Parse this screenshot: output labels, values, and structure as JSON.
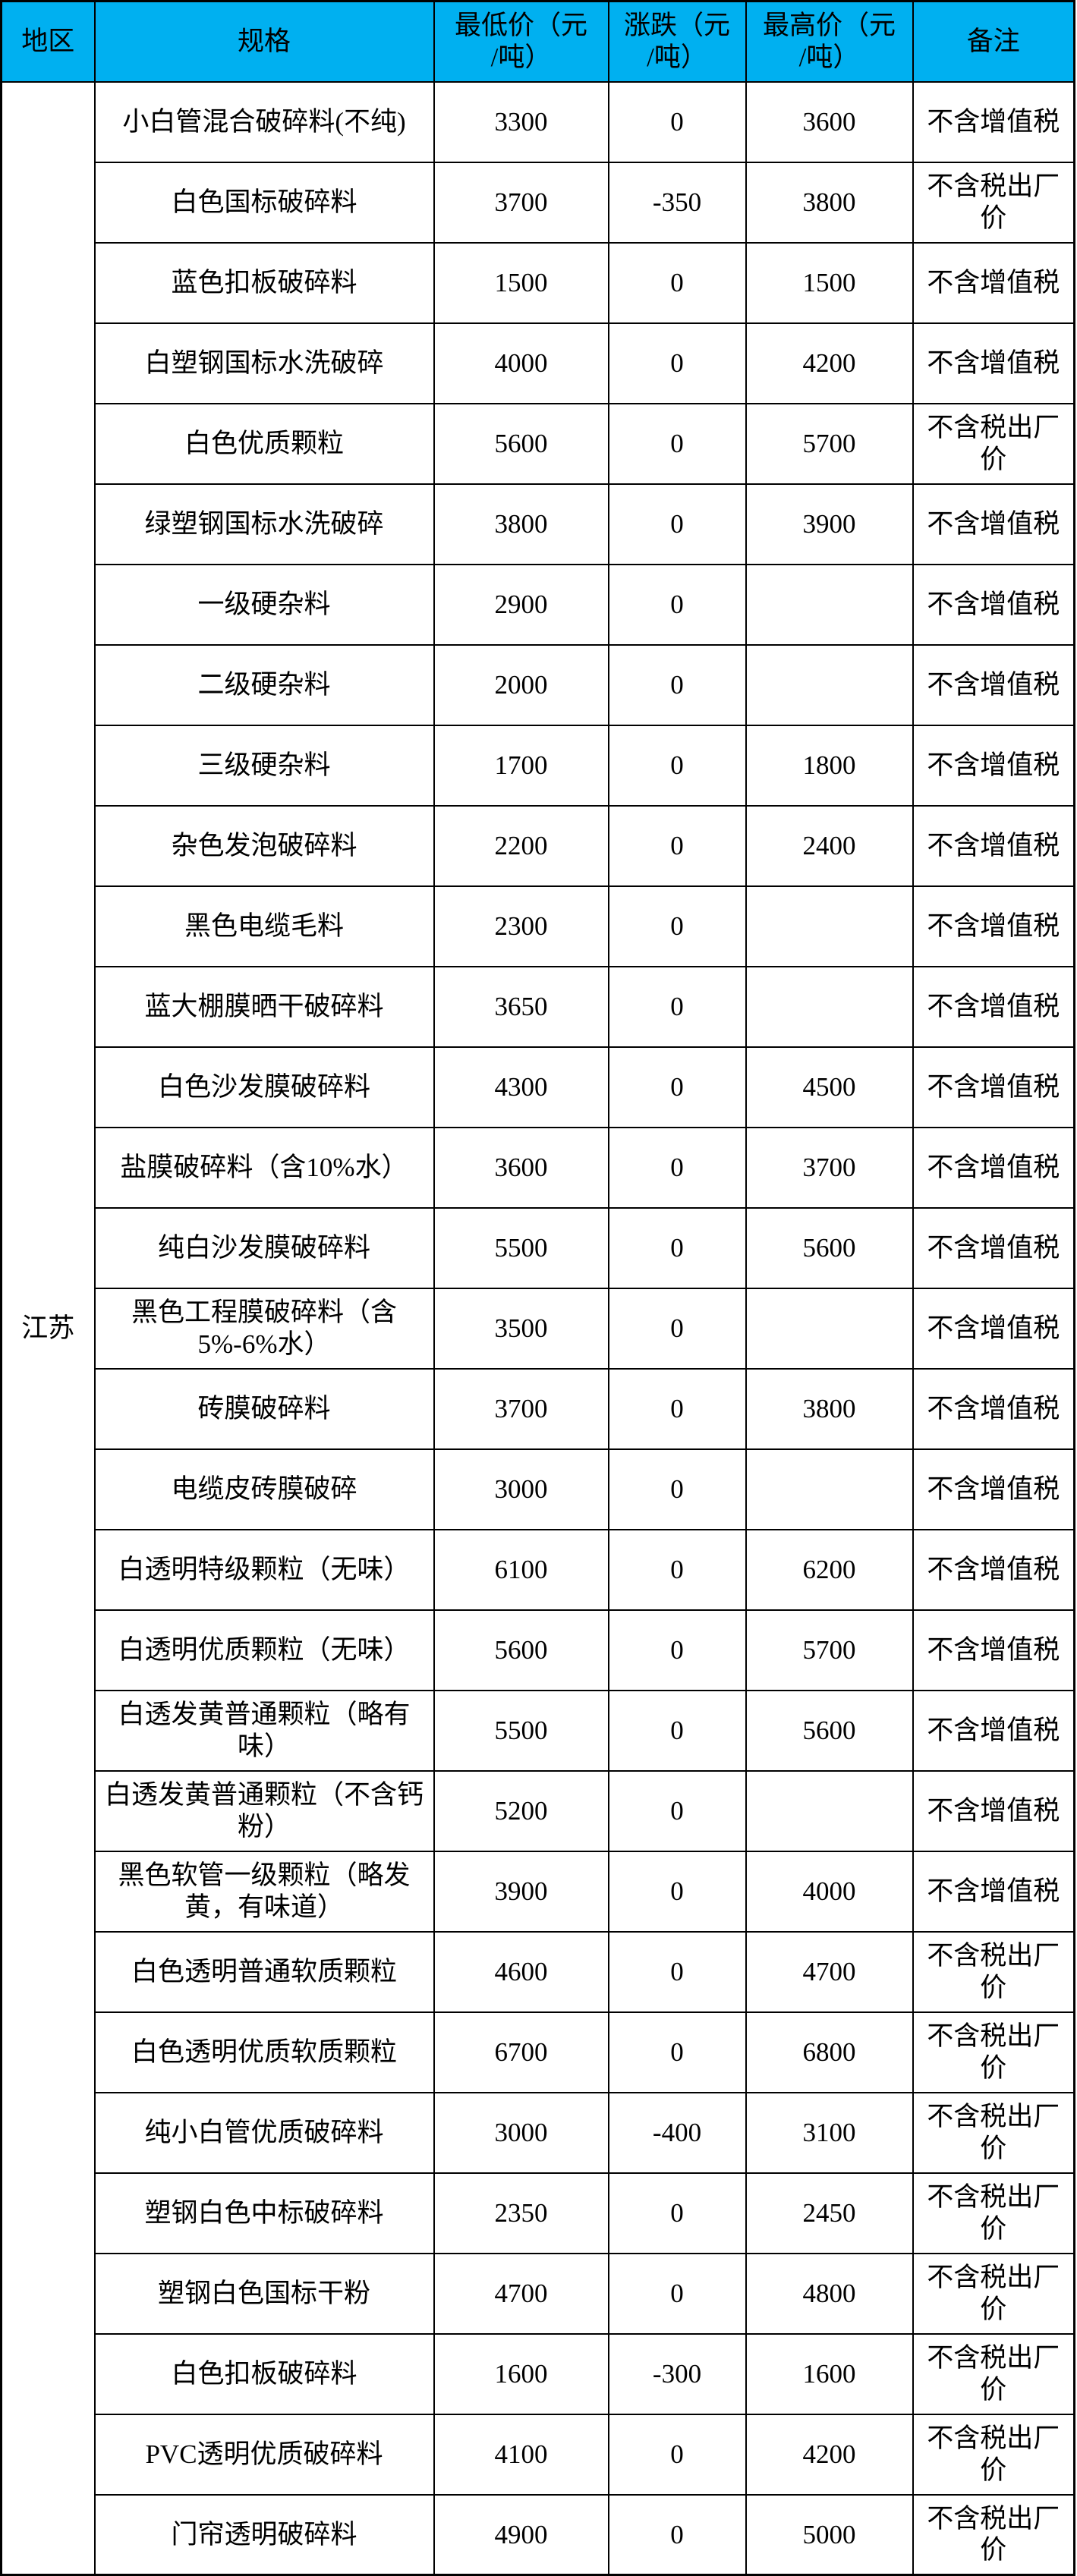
{
  "colors": {
    "header_bg": "#00B0F0",
    "border": "#000000",
    "text": "#000000",
    "page_bg": "#FFFFFF"
  },
  "chart_data": {
    "type": "table",
    "region": "江苏",
    "headers": {
      "region": "地区",
      "spec": "规格",
      "min": "最低价（元\n/吨）",
      "change": "涨跌（元\n/吨）",
      "max": "最高价（元\n/吨）",
      "note": "备注"
    },
    "rows": [
      {
        "spec": "小白管混合破碎料(不纯)",
        "min": "3300",
        "change": "0",
        "max": "3600",
        "note": "不含增值税"
      },
      {
        "spec": "白色国标破碎料",
        "min": "3700",
        "change": "-350",
        "max": "3800",
        "note": "不含税出厂价"
      },
      {
        "spec": "蓝色扣板破碎料",
        "min": "1500",
        "change": "0",
        "max": "1500",
        "note": "不含增值税"
      },
      {
        "spec": "白塑钢国标水洗破碎",
        "min": "4000",
        "change": "0",
        "max": "4200",
        "note": "不含增值税"
      },
      {
        "spec": "白色优质颗粒",
        "min": "5600",
        "change": "0",
        "max": "5700",
        "note": "不含税出厂价"
      },
      {
        "spec": "绿塑钢国标水洗破碎",
        "min": "3800",
        "change": "0",
        "max": "3900",
        "note": "不含增值税"
      },
      {
        "spec": "一级硬杂料",
        "min": "2900",
        "change": "0",
        "max": "",
        "note": "不含增值税"
      },
      {
        "spec": "二级硬杂料",
        "min": "2000",
        "change": "0",
        "max": "",
        "note": "不含增值税"
      },
      {
        "spec": "三级硬杂料",
        "min": "1700",
        "change": "0",
        "max": "1800",
        "note": "不含增值税"
      },
      {
        "spec": "杂色发泡破碎料",
        "min": "2200",
        "change": "0",
        "max": "2400",
        "note": "不含增值税"
      },
      {
        "spec": "黑色电缆毛料",
        "min": "2300",
        "change": "0",
        "max": "",
        "note": "不含增值税"
      },
      {
        "spec": "蓝大棚膜晒干破碎料",
        "min": "3650",
        "change": "0",
        "max": "",
        "note": "不含增值税"
      },
      {
        "spec": "白色沙发膜破碎料",
        "min": "4300",
        "change": "0",
        "max": "4500",
        "note": "不含增值税"
      },
      {
        "spec": "盐膜破碎料（含10%水）",
        "min": "3600",
        "change": "0",
        "max": "3700",
        "note": "不含增值税"
      },
      {
        "spec": "纯白沙发膜破碎料",
        "min": "5500",
        "change": "0",
        "max": "5600",
        "note": "不含增值税"
      },
      {
        "spec": "黑色工程膜破碎料（含5%-6%水）",
        "min": "3500",
        "change": "0",
        "max": "",
        "note": "不含增值税"
      },
      {
        "spec": "砖膜破碎料",
        "min": "3700",
        "change": "0",
        "max": "3800",
        "note": "不含增值税"
      },
      {
        "spec": "电缆皮砖膜破碎",
        "min": "3000",
        "change": "0",
        "max": "",
        "note": "不含增值税"
      },
      {
        "spec": "白透明特级颗粒（无味）",
        "min": "6100",
        "change": "0",
        "max": "6200",
        "note": "不含增值税"
      },
      {
        "spec": "白透明优质颗粒（无味）",
        "min": "5600",
        "change": "0",
        "max": "5700",
        "note": "不含增值税"
      },
      {
        "spec": "白透发黄普通颗粒（略有味）",
        "min": "5500",
        "change": "0",
        "max": "5600",
        "note": "不含增值税"
      },
      {
        "spec": "白透发黄普通颗粒（不含钙粉）",
        "min": "5200",
        "change": "0",
        "max": "",
        "note": "不含增值税"
      },
      {
        "spec": "黑色软管一级颗粒（略发黄，有味道）",
        "min": "3900",
        "change": "0",
        "max": "4000",
        "note": "不含增值税"
      },
      {
        "spec": "白色透明普通软质颗粒",
        "min": "4600",
        "change": "0",
        "max": "4700",
        "note": "不含税出厂价"
      },
      {
        "spec": "白色透明优质软质颗粒",
        "min": "6700",
        "change": "0",
        "max": "6800",
        "note": "不含税出厂价"
      },
      {
        "spec": "纯小白管优质破碎料",
        "min": "3000",
        "change": "-400",
        "max": "3100",
        "note": "不含税出厂价"
      },
      {
        "spec": "塑钢白色中标破碎料",
        "min": "2350",
        "change": "0",
        "max": "2450",
        "note": "不含税出厂价"
      },
      {
        "spec": "塑钢白色国标干粉",
        "min": "4700",
        "change": "0",
        "max": "4800",
        "note": "不含税出厂价"
      },
      {
        "spec": "白色扣板破碎料",
        "min": "1600",
        "change": "-300",
        "max": "1600",
        "note": "不含税出厂价"
      },
      {
        "spec": "PVC透明优质破碎料",
        "min": "4100",
        "change": "0",
        "max": "4200",
        "note": "不含税出厂价"
      },
      {
        "spec": "门帘透明破碎料",
        "min": "4900",
        "change": "0",
        "max": "5000",
        "note": "不含税出厂价"
      }
    ]
  }
}
